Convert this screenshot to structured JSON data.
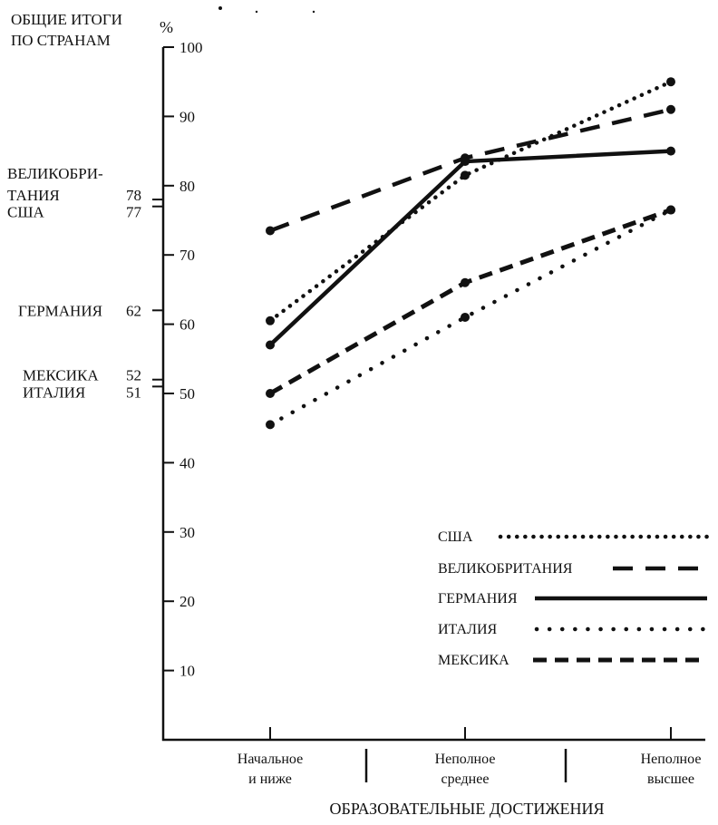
{
  "chart_data": {
    "type": "line",
    "title_lines": [
      "ОБЩИЕ ИТОГИ",
      "ПО СТРАНАМ"
    ],
    "yunit": "%",
    "xlabel": "ОБРАЗОВАТЕЛЬНЫЕ ДОСТИЖЕНИЯ",
    "ylim": [
      0,
      100
    ],
    "yticks": [
      10,
      20,
      30,
      40,
      50,
      60,
      70,
      80,
      90,
      100
    ],
    "categories": [
      [
        "Начальное",
        "и ниже"
      ],
      [
        "Неполное",
        "среднее"
      ],
      [
        "Неполное",
        "высшее"
      ]
    ],
    "totals": [
      {
        "label": [
          "ВЕЛИКОБРИ-",
          "ТАНИЯ"
        ],
        "value": 78
      },
      {
        "label": [
          "США"
        ],
        "value": 77
      },
      {
        "label": [
          "ГЕРМАНИЯ"
        ],
        "value": 62
      },
      {
        "label": [
          "МЕКСИКА"
        ],
        "value": 52
      },
      {
        "label": [
          "ИТАЛИЯ"
        ],
        "value": 51
      }
    ],
    "series": [
      {
        "name": "США",
        "values": [
          60.5,
          81.5,
          95
        ],
        "style": "dotted"
      },
      {
        "name": "ВЕЛИКОБРИТАНИЯ",
        "values": [
          73.5,
          84,
          91
        ],
        "style": "dashed"
      },
      {
        "name": "ГЕРМАНИЯ",
        "values": [
          57,
          83.5,
          85
        ],
        "style": "solid"
      },
      {
        "name": "ИТАЛИЯ",
        "values": [
          45.5,
          61,
          76.5
        ],
        "style": "sparse-dotted"
      },
      {
        "name": "МЕКСИКА",
        "values": [
          50,
          66,
          76.5
        ],
        "style": "short-dashed"
      }
    ],
    "grid": false,
    "legend_position": "bottom-right"
  }
}
